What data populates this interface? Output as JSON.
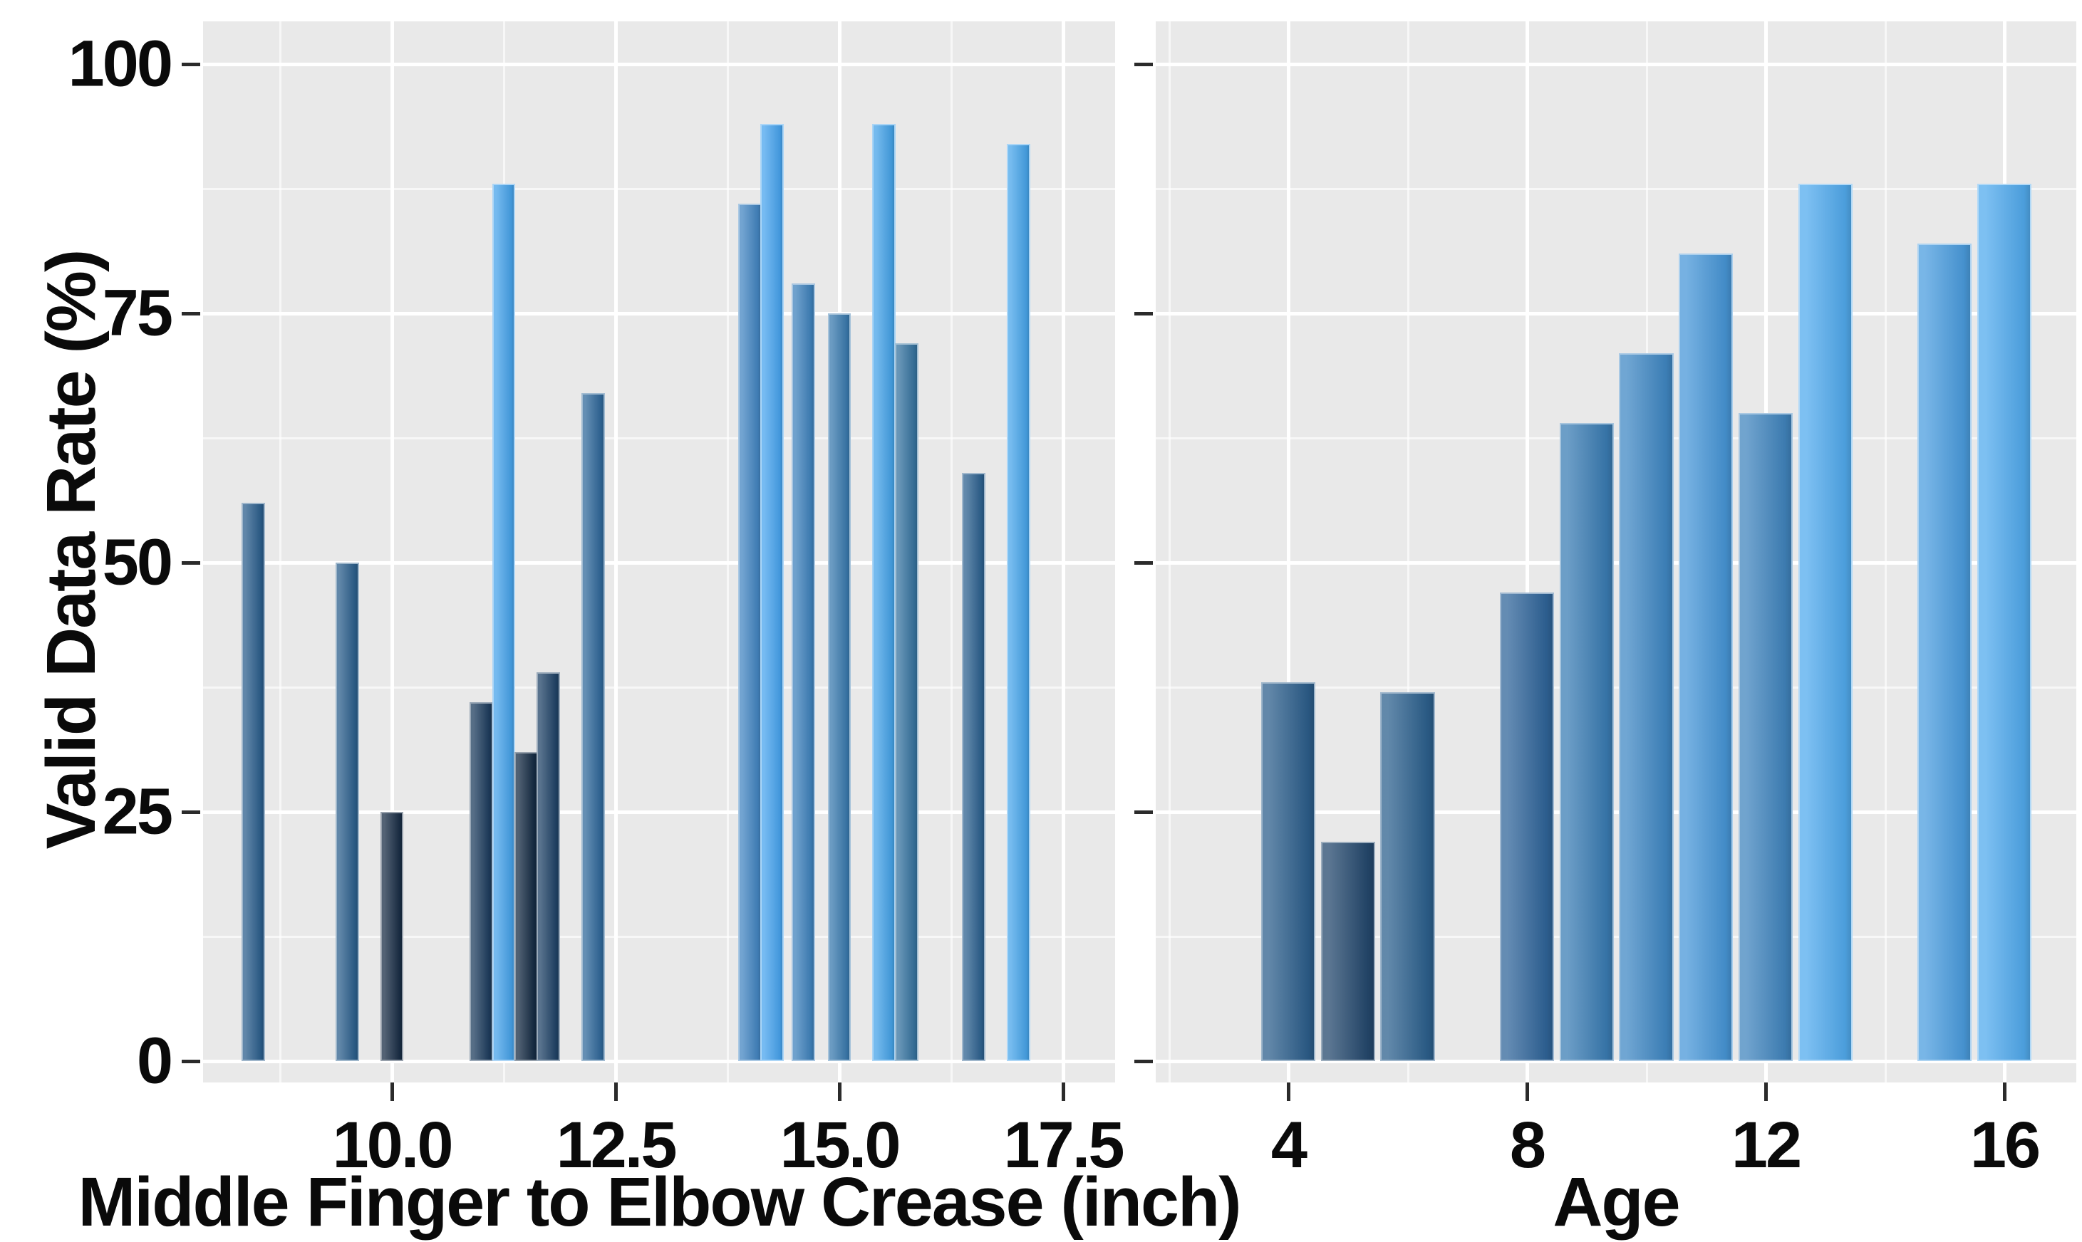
{
  "chart_data": [
    {
      "type": "bar",
      "panel": "left",
      "title": "",
      "xlabel": "Middle Finger to Elbow Crease (inch)",
      "ylabel": "Valid Data Rate (%)",
      "xlim": [
        7.9,
        17.95
      ],
      "ylim": [
        0,
        102
      ],
      "x_ticks": [
        10.0,
        12.5,
        15.0,
        17.5
      ],
      "x_tick_labels": [
        "10.0",
        "12.5",
        "15.0",
        "17.5"
      ],
      "x_minor_ticks": [
        8.75,
        11.25,
        13.75,
        16.25
      ],
      "y_ticks": [
        0,
        25,
        50,
        75,
        100
      ],
      "y_tick_labels": [
        "0",
        "25",
        "50",
        "75",
        "100"
      ],
      "y_minor_ticks": [
        12.5,
        37.5,
        62.5,
        87.5
      ],
      "y_ticks_labeled": true,
      "grid": "both",
      "legend": false,
      "panel_bg": "#e9e9e9",
      "bar_width_x": 0.26,
      "points": [
        {
          "x": 8.45,
          "y": 56,
          "color": "#2b5e8c"
        },
        {
          "x": 9.5,
          "y": 50,
          "color": "#2c5f8c"
        },
        {
          "x": 10.0,
          "y": 25,
          "color": "#1a2e46"
        },
        {
          "x": 11.0,
          "y": 36,
          "color": "#1e3d5e"
        },
        {
          "x": 11.25,
          "y": 88,
          "color": "#47a3ea"
        },
        {
          "x": 11.5,
          "y": 31,
          "color": "#162c44"
        },
        {
          "x": 11.75,
          "y": 39,
          "color": "#204367"
        },
        {
          "x": 12.25,
          "y": 67,
          "color": "#30689a"
        },
        {
          "x": 14.0,
          "y": 86,
          "color": "#4486c2"
        },
        {
          "x": 14.25,
          "y": 94,
          "color": "#48a4ee"
        },
        {
          "x": 14.6,
          "y": 78,
          "color": "#3f82bc"
        },
        {
          "x": 15.0,
          "y": 75,
          "color": "#3a7aae"
        },
        {
          "x": 15.5,
          "y": 94,
          "color": "#46a3e8"
        },
        {
          "x": 15.75,
          "y": 72,
          "color": "#36739f"
        },
        {
          "x": 16.5,
          "y": 59,
          "color": "#2d618f"
        },
        {
          "x": 17.0,
          "y": 92,
          "color": "#48a5ea"
        }
      ]
    },
    {
      "type": "bar",
      "panel": "right",
      "title": "",
      "xlabel": "Age",
      "ylabel": "",
      "xlim": [
        1.8,
        17.2
      ],
      "ylim": [
        0,
        102
      ],
      "x_ticks": [
        4,
        8,
        12,
        16
      ],
      "x_tick_labels": [
        "4",
        "8",
        "12",
        "16"
      ],
      "x_minor_ticks": [
        2,
        6,
        10,
        14
      ],
      "y_ticks": [
        0,
        25,
        50,
        75,
        100
      ],
      "y_tick_labels": [
        "0",
        "25",
        "50",
        "75",
        "100"
      ],
      "y_minor_ticks": [
        12.5,
        37.5,
        62.5,
        87.5
      ],
      "y_ticks_labeled": false,
      "grid": "both",
      "legend": false,
      "panel_bg": "#e9e9e9",
      "bar_width_x": 0.91,
      "points": [
        {
          "x": 4,
          "y": 38,
          "color": "#2d5f8c"
        },
        {
          "x": 5,
          "y": 22,
          "color": "#25496e"
        },
        {
          "x": 6,
          "y": 37,
          "color": "#2d618e"
        },
        {
          "x": 8,
          "y": 47,
          "color": "#30659a"
        },
        {
          "x": 9,
          "y": 64,
          "color": "#3b7db4"
        },
        {
          "x": 10,
          "y": 71,
          "color": "#4088c4"
        },
        {
          "x": 11,
          "y": 81,
          "color": "#4897d8"
        },
        {
          "x": 12,
          "y": 65,
          "color": "#4185be"
        },
        {
          "x": 13,
          "y": 88,
          "color": "#52abee"
        },
        {
          "x": 15,
          "y": 82,
          "color": "#4b9ddf"
        },
        {
          "x": 16,
          "y": 88,
          "color": "#52abee"
        }
      ]
    }
  ]
}
